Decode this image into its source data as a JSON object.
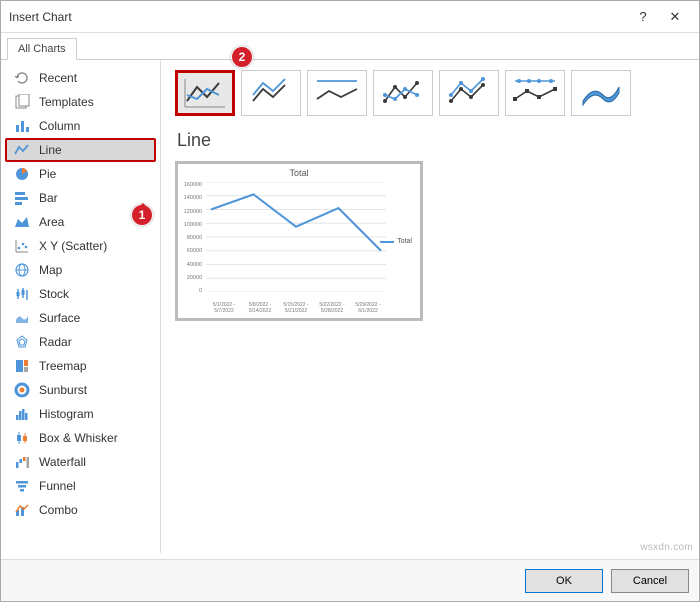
{
  "window": {
    "title": "Insert Chart",
    "help": "?",
    "close": "✕"
  },
  "tabs": {
    "all": "All Charts"
  },
  "sidebar": {
    "items": [
      {
        "label": "Recent"
      },
      {
        "label": "Templates"
      },
      {
        "label": "Column"
      },
      {
        "label": "Line"
      },
      {
        "label": "Pie"
      },
      {
        "label": "Bar"
      },
      {
        "label": "Area"
      },
      {
        "label": "X Y (Scatter)"
      },
      {
        "label": "Map"
      },
      {
        "label": "Stock"
      },
      {
        "label": "Surface"
      },
      {
        "label": "Radar"
      },
      {
        "label": "Treemap"
      },
      {
        "label": "Sunburst"
      },
      {
        "label": "Histogram"
      },
      {
        "label": "Box & Whisker"
      },
      {
        "label": "Waterfall"
      },
      {
        "label": "Funnel"
      },
      {
        "label": "Combo"
      }
    ],
    "selected_index": 3
  },
  "callouts": {
    "one": "1",
    "two": "2"
  },
  "chart": {
    "heading": "Line",
    "accent": "#4e95d9",
    "dark": "#3a3a3a",
    "subtype_selected": 0
  },
  "preview": {
    "title": "Total",
    "legend": "Total",
    "type": "line",
    "y_ticks": [
      "160000",
      "140000",
      "120000",
      "100000",
      "80000",
      "60000",
      "40000",
      "20000",
      "0"
    ],
    "x_labels": [
      "5/1/2022 - 5/7/2022",
      "5/8/2022 - 5/14/2022",
      "5/15/2022 - 5/21/2022",
      "5/22/2022 - 5/28/2022",
      "5/29/2022 - 6/1/2022"
    ],
    "values": [
      120000,
      142000,
      95000,
      122000,
      60000
    ],
    "ylim": [
      0,
      160000
    ],
    "line_color": "#4e95d9",
    "grid_color": "#e6e6e6",
    "background_color": "#ffffff"
  },
  "footer": {
    "ok": "OK",
    "cancel": "Cancel"
  },
  "watermark": "wsxdn.com"
}
